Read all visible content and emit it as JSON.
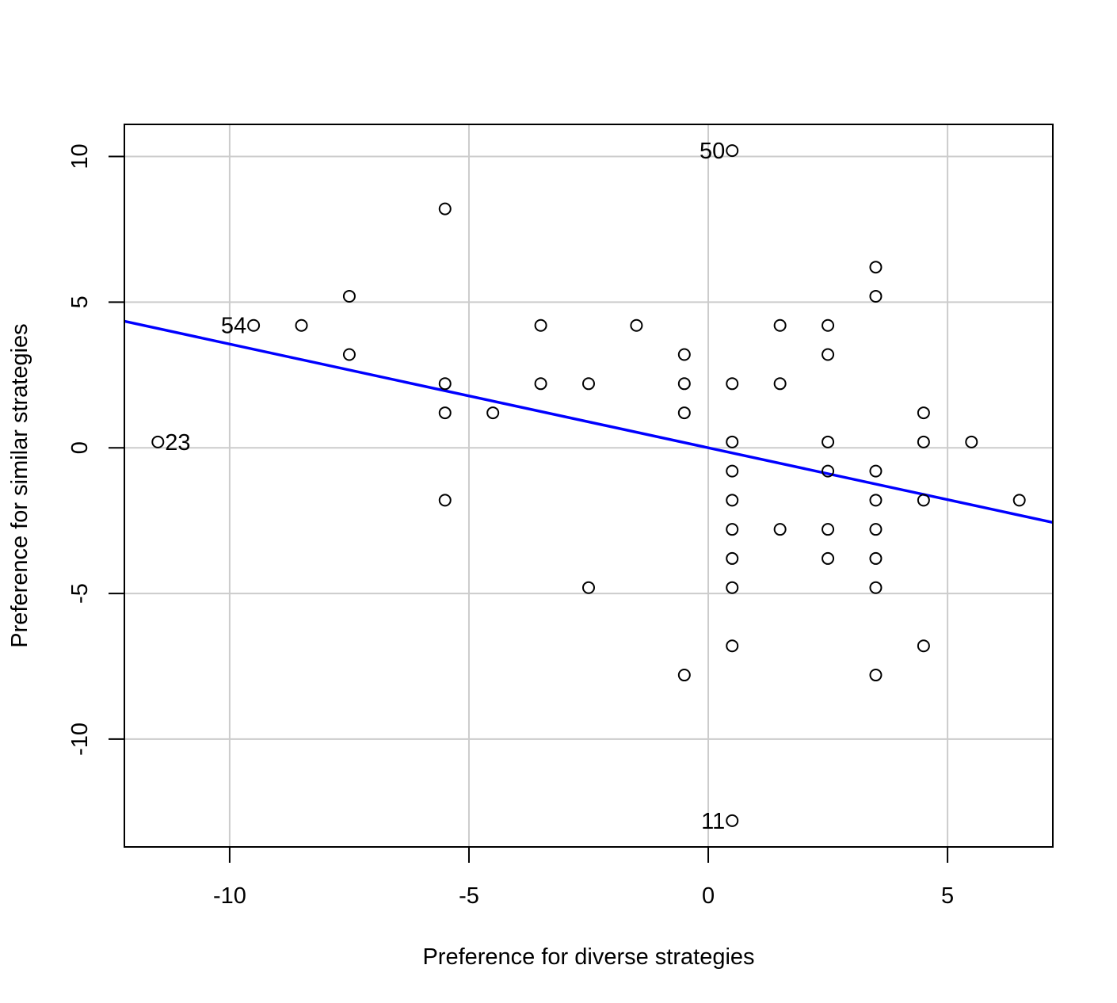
{
  "chart_data": {
    "type": "scatter",
    "xlabel": "Preference for diverse strategies",
    "ylabel": "Preference for similar strategies",
    "xlim": [
      -12.2,
      7.2
    ],
    "ylim": [
      -13.7,
      11.1
    ],
    "xticks": [
      -10,
      -5,
      0,
      5
    ],
    "yticks": [
      -10,
      -5,
      0,
      5,
      10
    ],
    "grid": true,
    "colors": {
      "points": "#000000",
      "fit_line": "#0000ff",
      "grid": "#cccccc"
    },
    "points": [
      {
        "x": -11.5,
        "y": 0.2,
        "label": "23"
      },
      {
        "x": -9.5,
        "y": 4.2,
        "label": "54"
      },
      {
        "x": -8.5,
        "y": 4.2
      },
      {
        "x": -7.5,
        "y": 5.2
      },
      {
        "x": -7.5,
        "y": 3.2
      },
      {
        "x": -5.5,
        "y": 8.2
      },
      {
        "x": -5.5,
        "y": 2.2
      },
      {
        "x": -5.5,
        "y": 1.2
      },
      {
        "x": -5.5,
        "y": -1.8
      },
      {
        "x": -4.5,
        "y": 1.2
      },
      {
        "x": -3.5,
        "y": 4.2
      },
      {
        "x": -3.5,
        "y": 2.2
      },
      {
        "x": -2.5,
        "y": 2.2
      },
      {
        "x": -2.5,
        "y": -4.8
      },
      {
        "x": -1.5,
        "y": 4.2
      },
      {
        "x": -0.5,
        "y": 3.2
      },
      {
        "x": -0.5,
        "y": 2.2
      },
      {
        "x": -0.5,
        "y": 1.2
      },
      {
        "x": -0.5,
        "y": -7.8
      },
      {
        "x": 0.5,
        "y": 10.2,
        "label": "50"
      },
      {
        "x": 0.5,
        "y": 2.2
      },
      {
        "x": 0.5,
        "y": 0.2
      },
      {
        "x": 0.5,
        "y": -0.8
      },
      {
        "x": 0.5,
        "y": -1.8
      },
      {
        "x": 0.5,
        "y": -2.8
      },
      {
        "x": 0.5,
        "y": -3.8
      },
      {
        "x": 0.5,
        "y": -4.8
      },
      {
        "x": 0.5,
        "y": -6.8
      },
      {
        "x": 0.5,
        "y": -12.8,
        "label": "11"
      },
      {
        "x": 1.5,
        "y": 4.2
      },
      {
        "x": 1.5,
        "y": 2.2
      },
      {
        "x": 1.5,
        "y": -2.8
      },
      {
        "x": 2.5,
        "y": 4.2
      },
      {
        "x": 2.5,
        "y": 3.2
      },
      {
        "x": 2.5,
        "y": 0.2
      },
      {
        "x": 2.5,
        "y": -0.8
      },
      {
        "x": 2.5,
        "y": -2.8
      },
      {
        "x": 2.5,
        "y": -3.8
      },
      {
        "x": 3.5,
        "y": 6.2
      },
      {
        "x": 3.5,
        "y": 5.2
      },
      {
        "x": 3.5,
        "y": -0.8
      },
      {
        "x": 3.5,
        "y": -1.8
      },
      {
        "x": 3.5,
        "y": -2.8
      },
      {
        "x": 3.5,
        "y": -3.8
      },
      {
        "x": 3.5,
        "y": -4.8
      },
      {
        "x": 3.5,
        "y": -7.8
      },
      {
        "x": 4.5,
        "y": 1.2
      },
      {
        "x": 4.5,
        "y": 0.2
      },
      {
        "x": 4.5,
        "y": -1.8
      },
      {
        "x": 4.5,
        "y": -6.8
      },
      {
        "x": 5.5,
        "y": 0.2
      },
      {
        "x": 6.5,
        "y": -1.8
      }
    ],
    "fit_line": {
      "slope": -0.356,
      "intercept": 0.0
    }
  }
}
